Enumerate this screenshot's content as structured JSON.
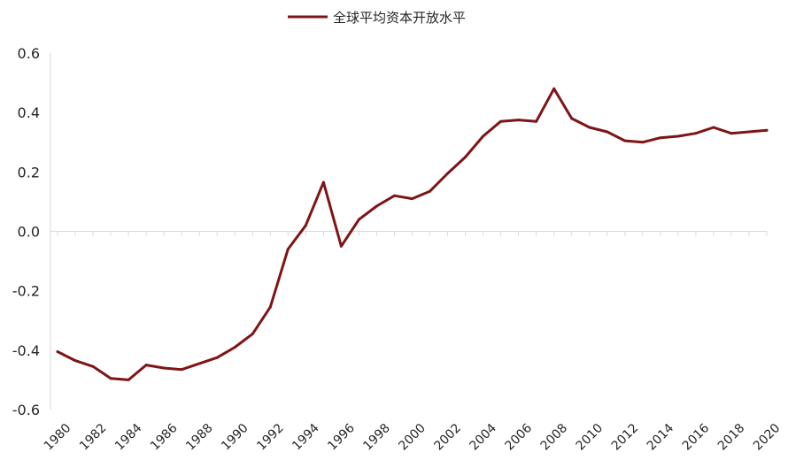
{
  "chart_data": {
    "type": "line",
    "title": "",
    "xlabel": "",
    "ylabel": "",
    "ylim": [
      -0.6,
      0.6
    ],
    "y_ticks": [
      "0.6",
      "0.4",
      "0.2",
      "0.0",
      "-0.2",
      "-0.4",
      "-0.6"
    ],
    "y_tick_values": [
      0.6,
      0.4,
      0.2,
      0.0,
      -0.2,
      -0.4,
      -0.6
    ],
    "x_tick_labels": [
      "1980",
      "1982",
      "1984",
      "1986",
      "1988",
      "1990",
      "1992",
      "1994",
      "1996",
      "1998",
      "2000",
      "2002",
      "2004",
      "2006",
      "2008",
      "2010",
      "2012",
      "2014",
      "2016",
      "2018",
      "2020"
    ],
    "grid": false,
    "legend_position": "top-center",
    "x": [
      1980,
      1981,
      1982,
      1983,
      1984,
      1985,
      1986,
      1987,
      1988,
      1989,
      1990,
      1991,
      1992,
      1993,
      1994,
      1995,
      1996,
      1997,
      1998,
      1999,
      2000,
      2001,
      2002,
      2003,
      2004,
      2005,
      2006,
      2007,
      2008,
      2009,
      2010,
      2011,
      2012,
      2013,
      2014,
      2015,
      2016,
      2017,
      2018,
      2019,
      2020
    ],
    "series": [
      {
        "name": "全球平均资本开放水平",
        "color": "#7f1416",
        "values": [
          -0.405,
          -0.435,
          -0.455,
          -0.495,
          -0.5,
          -0.45,
          -0.46,
          -0.465,
          -0.445,
          -0.425,
          -0.39,
          -0.345,
          -0.255,
          -0.06,
          0.02,
          0.165,
          -0.05,
          0.04,
          0.085,
          0.12,
          0.11,
          0.135,
          0.195,
          0.25,
          0.32,
          0.37,
          0.375,
          0.37,
          0.48,
          0.38,
          0.35,
          0.335,
          0.305,
          0.3,
          0.315,
          0.32,
          0.33,
          0.35,
          0.33,
          0.335,
          0.34
        ]
      }
    ]
  }
}
